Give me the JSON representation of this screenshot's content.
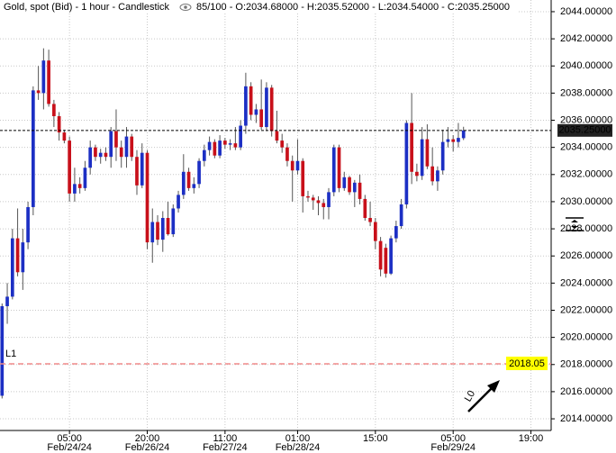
{
  "chart_data": {
    "type": "candlestick",
    "title": "Gold, spot (Bid) - 1 hour - Candlestick",
    "info": "85/100 - O:2034.68000 - H:2035.52000 - L:2034.54000 - C:2035.25000",
    "up_color": "#1c2fc4",
    "down_color": "#c8101a",
    "grid": true,
    "xlim": [
      -0.4,
      105.9
    ],
    "ylim": [
      2013.14,
      2044.86
    ],
    "yticks": [
      {
        "value": 2014,
        "label": "2014.00000"
      },
      {
        "value": 2016,
        "label": "2016.00000"
      },
      {
        "value": 2018,
        "label": "2018.00000"
      },
      {
        "value": 2020,
        "label": "2020.00000"
      },
      {
        "value": 2022,
        "label": "2022.00000"
      },
      {
        "value": 2024,
        "label": "2024.00000"
      },
      {
        "value": 2026,
        "label": "2026.00000"
      },
      {
        "value": 2028,
        "label": "2028.00000"
      },
      {
        "value": 2030,
        "label": "2030.00000"
      },
      {
        "value": 2032,
        "label": "2032.00000"
      },
      {
        "value": 2034,
        "label": "2034.00000"
      },
      {
        "value": 2036,
        "label": "2036.00000"
      },
      {
        "value": 2038,
        "label": "2038.00000"
      },
      {
        "value": 2040,
        "label": "2040.00000"
      },
      {
        "value": 2042,
        "label": "2042.00000"
      },
      {
        "value": 2044,
        "label": "2044.00000"
      }
    ],
    "xticks": [
      {
        "value": 13,
        "label": "05:00",
        "date": "Feb/24/24"
      },
      {
        "value": 28,
        "label": "20:00",
        "date": "Feb/26/24"
      },
      {
        "value": 43,
        "label": "11:00",
        "date": "Feb/27/24"
      },
      {
        "value": 57,
        "label": "01:00",
        "date": "Feb/28/24"
      },
      {
        "value": 72,
        "label": "15:00"
      },
      {
        "value": 87,
        "label": "05:00",
        "date": "Feb/29/24"
      },
      {
        "value": 102,
        "label": "19:00"
      }
    ],
    "open": [
      2015.7,
      2022.3,
      2023.0,
      2027.3,
      2024.8,
      2027.0,
      2029.6,
      2038.2,
      2038.0,
      2040.4,
      2037.2,
      2036.3,
      2035.1,
      2034.5,
      2030.6,
      2031.3,
      2031.0,
      2032.5,
      2034.0,
      2033.3,
      2033.6,
      2033.3,
      2035.2,
      2034.0,
      2033.3,
      2034.8,
      2033.3,
      2031.2,
      2033.6,
      2027.0,
      2028.5,
      2027.2,
      2028.8,
      2027.6,
      2029.5,
      2030.5,
      2032.2,
      2031.0,
      2031.3,
      2033.0,
      2033.8,
      2034.4,
      2033.4,
      2034.5,
      2034.2,
      2034.3,
      2034.0,
      2035.6,
      2038.5,
      2036.4,
      2036.8,
      2035.5,
      2038.4,
      2035.2,
      2034.5,
      2034.0,
      2033.0,
      2032.3,
      2033.0,
      2030.4,
      2030.3,
      2030.1,
      2029.9,
      2029.6,
      2030.7,
      2034.0,
      2031.0,
      2031.8,
      2030.7,
      2031.4,
      2030.2,
      2028.8,
      2028.5,
      2027.1,
      2026.6,
      2024.7,
      2027.3,
      2028.2,
      2029.8,
      2035.8,
      2032.2,
      2031.9,
      2034.6,
      2032.6,
      2031.5,
      2032.3,
      2034.4,
      2034.6,
      2034.4,
      2034.68
    ],
    "high": [
      2022.5,
      2024.0,
      2028.0,
      2029.5,
      2028.0,
      2030.0,
      2038.5,
      2040.0,
      2041.3,
      2041.2,
      2037.5,
      2036.6,
      2035.3,
      2034.8,
      2032.5,
      2031.8,
      2033.0,
      2034.5,
      2034.2,
      2033.9,
      2034.0,
      2035.5,
      2036.8,
      2034.5,
      2035.5,
      2035.0,
      2033.8,
      2034.3,
      2033.8,
      2029.5,
      2029.0,
      2029.3,
      2030.0,
      2029.8,
      2030.8,
      2033.5,
      2032.5,
      2031.8,
      2033.2,
      2034.2,
      2034.8,
      2034.6,
      2034.9,
      2034.7,
      2034.6,
      2035.5,
      2036.0,
      2039.5,
      2038.8,
      2037.2,
      2039.0,
      2038.8,
      2038.6,
      2036.7,
      2035.0,
      2034.3,
      2033.4,
      2034.6,
      2033.2,
      2030.8,
      2030.5,
      2030.4,
      2030.2,
      2031.0,
      2034.2,
      2034.2,
      2032.2,
      2031.9,
      2031.6,
      2032.0,
      2030.5,
      2030.0,
      2028.8,
      2027.4,
      2026.9,
      2027.5,
      2028.6,
      2030.2,
      2036.0,
      2038.0,
      2032.8,
      2035.5,
      2035.7,
      2034.0,
      2032.6,
      2035.3,
      2035.5,
      2034.9,
      2035.8,
      2035.52
    ],
    "low": [
      2015.5,
      2021.0,
      2022.8,
      2024.5,
      2023.5,
      2026.5,
      2029.0,
      2037.5,
      2036.8,
      2037.0,
      2035.5,
      2034.5,
      2034.3,
      2030.0,
      2030.0,
      2030.6,
      2030.8,
      2032.0,
      2033.0,
      2032.8,
      2033.0,
      2032.5,
      2033.0,
      2032.5,
      2032.5,
      2033.0,
      2030.5,
      2031.0,
      2026.5,
      2025.5,
      2026.8,
      2026.3,
      2027.5,
      2027.4,
      2029.2,
      2030.2,
      2030.8,
      2030.6,
      2031.0,
      2032.6,
      2033.4,
      2033.2,
      2033.2,
      2033.9,
      2033.8,
      2033.8,
      2033.8,
      2035.0,
      2036.0,
      2035.8,
      2035.3,
      2035.2,
      2034.8,
      2034.3,
      2033.6,
      2032.6,
      2030.0,
      2032.0,
      2029.2,
      2030.0,
      2029.4,
      2029.0,
      2028.7,
      2028.7,
      2030.4,
      2030.7,
      2030.8,
      2030.5,
      2029.6,
      2029.8,
      2028.6,
      2028.2,
      2026.5,
      2024.5,
      2024.4,
      2024.6,
      2027.0,
      2028.0,
      2029.5,
      2031.3,
      2031.5,
      2031.6,
      2032.4,
      2031.2,
      2030.8,
      2032.0,
      2034.0,
      2033.7,
      2034.0,
      2034.54
    ],
    "close": [
      2022.3,
      2023.0,
      2027.3,
      2024.8,
      2027.0,
      2029.6,
      2038.2,
      2038.0,
      2040.4,
      2037.2,
      2036.3,
      2035.1,
      2034.5,
      2030.6,
      2031.3,
      2031.0,
      2032.5,
      2034.0,
      2033.3,
      2033.6,
      2033.3,
      2035.2,
      2034.0,
      2033.3,
      2034.8,
      2033.3,
      2031.2,
      2033.6,
      2027.0,
      2028.5,
      2027.2,
      2028.8,
      2027.6,
      2029.5,
      2030.5,
      2032.2,
      2031.0,
      2031.3,
      2033.0,
      2033.8,
      2034.4,
      2033.4,
      2034.5,
      2034.2,
      2034.3,
      2034.0,
      2035.6,
      2038.5,
      2036.4,
      2036.8,
      2035.5,
      2038.4,
      2035.2,
      2034.5,
      2034.0,
      2033.0,
      2032.3,
      2033.0,
      2030.4,
      2030.3,
      2030.1,
      2029.9,
      2029.6,
      2030.7,
      2034.0,
      2031.0,
      2031.8,
      2030.7,
      2031.4,
      2030.2,
      2028.8,
      2028.5,
      2027.1,
      2025.0,
      2024.7,
      2027.3,
      2028.2,
      2029.8,
      2035.8,
      2032.2,
      2031.9,
      2034.6,
      2032.6,
      2031.5,
      2032.3,
      2034.4,
      2034.6,
      2034.4,
      2034.7,
      2035.25
    ],
    "last_price": {
      "value": 2035.25,
      "label": "2035.25000"
    },
    "level_line": {
      "value": 2018.05,
      "label": "2018.05",
      "name": "L1",
      "color": "#f08a8a"
    },
    "annotation": "L0"
  }
}
